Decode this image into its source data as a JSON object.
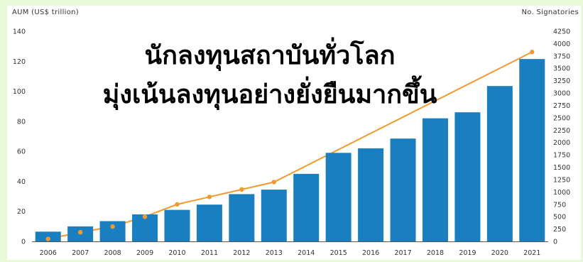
{
  "headline": {
    "line1": "นักลงทุนสถาบันทั่วโลก",
    "line2": "มุ่งเน้นลงทุนอย่างยั่งยืนมากขึ้น"
  },
  "colors": {
    "bar": "#1a7fc1",
    "line": "#f29a2e",
    "background": "#e9f9d8"
  },
  "chart_data": {
    "type": "bar",
    "title": "",
    "ylabel": "AUM (US$ trillion)",
    "y2label": "No. Signatories",
    "ylim": [
      0,
      140
    ],
    "y2lim": [
      0,
      4250
    ],
    "yticks": [
      0,
      20,
      40,
      60,
      80,
      100,
      120,
      140
    ],
    "y2ticks": [
      0,
      250,
      500,
      750,
      1000,
      1250,
      1500,
      1750,
      2000,
      2250,
      2500,
      2750,
      3000,
      3250,
      3500,
      3750,
      4000,
      4250
    ],
    "categories": [
      "2006",
      "2007",
      "2008",
      "2009",
      "2010",
      "2011",
      "2012",
      "2013",
      "2014",
      "2015",
      "2016",
      "2017",
      "2018",
      "2019",
      "2020",
      "2021"
    ],
    "series": [
      {
        "type": "bar",
        "axis": "left",
        "values": [
          6.5,
          10,
          13.5,
          18,
          21,
          24.5,
          31.5,
          34.5,
          45,
          59,
          62,
          68.5,
          82,
          86,
          103.5,
          121.5
        ]
      },
      {
        "type": "line",
        "axis": "right",
        "values": [
          50,
          185,
          300,
          500,
          750,
          900,
          1050,
          1200,
          null,
          null,
          null,
          null,
          null,
          null,
          null,
          3830
        ]
      }
    ],
    "grid": false,
    "legend": "none"
  }
}
